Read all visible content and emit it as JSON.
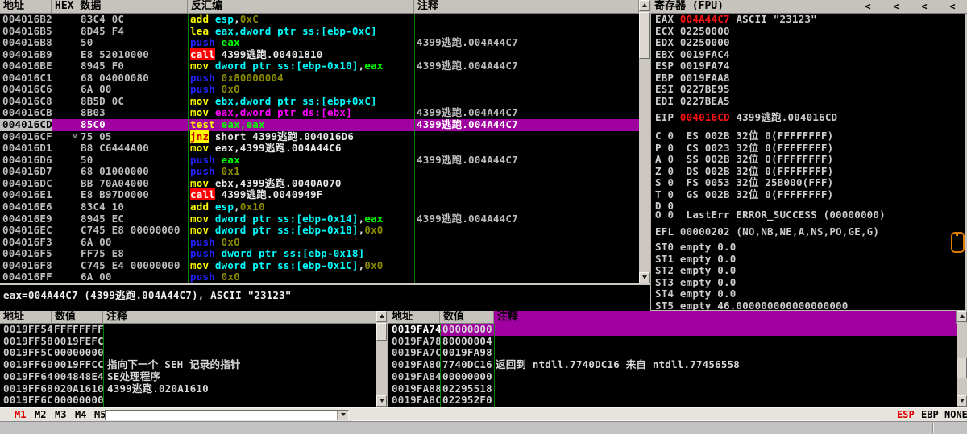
{
  "disasm": {
    "headers": [
      "地址",
      "HEX 数据",
      "反汇编",
      "注释"
    ],
    "rows": [
      {
        "addr": "004016B2",
        "hex": "83C4 0C",
        "segs": [
          [
            "y",
            "add "
          ],
          [
            "c",
            "esp"
          ],
          [
            "w",
            ","
          ],
          [
            "o",
            "0xC"
          ]
        ],
        "comment": ""
      },
      {
        "addr": "004016B5",
        "hex": "8D45 F4",
        "segs": [
          [
            "y",
            "lea "
          ],
          [
            "c",
            "eax,dword ptr ss:[ebp-0xC]"
          ]
        ],
        "comment": ""
      },
      {
        "addr": "004016B8",
        "hex": "50",
        "segs": [
          [
            "b",
            "push "
          ],
          [
            "g",
            "eax"
          ]
        ],
        "comment": "4399逃跑.004A44C7"
      },
      {
        "addr": "004016B9",
        "hex": "E8 52010000",
        "segs": [
          [
            "C",
            "call"
          ],
          [
            "w",
            " 4399逃跑.00401810"
          ]
        ],
        "comment": ""
      },
      {
        "addr": "004016BE",
        "hex": "8945 F0",
        "segs": [
          [
            "y",
            "mov "
          ],
          [
            "c",
            "dword ptr ss:[ebp-0x10]"
          ],
          [
            "w",
            ","
          ],
          [
            "g",
            "eax"
          ]
        ],
        "comment": "4399逃跑.004A44C7"
      },
      {
        "addr": "004016C1",
        "hex": "68 04000080",
        "segs": [
          [
            "b",
            "push "
          ],
          [
            "o",
            "0x80000004"
          ]
        ],
        "comment": ""
      },
      {
        "addr": "004016C6",
        "hex": "6A 00",
        "segs": [
          [
            "b",
            "push "
          ],
          [
            "o",
            "0x0"
          ]
        ],
        "comment": ""
      },
      {
        "addr": "004016C8",
        "hex": "8B5D 0C",
        "segs": [
          [
            "y",
            "mov "
          ],
          [
            "c",
            "ebx,dword ptr ss:[ebp+0xC]"
          ]
        ],
        "comment": ""
      },
      {
        "addr": "004016CB",
        "hex": "8B03",
        "segs": [
          [
            "y",
            "mov "
          ],
          [
            "m",
            "eax,dword ptr ds:[ebx]"
          ]
        ],
        "comment": "4399逃跑.004A44C7"
      },
      {
        "addr": "004016CD",
        "hex": "85C0",
        "segs": [
          [
            "y",
            "test "
          ],
          [
            "g",
            "eax,eax"
          ]
        ],
        "comment": "4399逃跑.004A44C7",
        "selected": true
      },
      {
        "addr": "004016CF",
        "hex": "75 05",
        "segs": [
          [
            "J",
            "jnz"
          ],
          [
            "w",
            " short 4399逃跑.004016D6"
          ]
        ],
        "comment": "",
        "arrow": "v"
      },
      {
        "addr": "004016D1",
        "hex": "B8 C6444A00",
        "segs": [
          [
            "y",
            "mov "
          ],
          [
            "w",
            "eax,4399逃跑.004A44C6"
          ]
        ],
        "comment": ""
      },
      {
        "addr": "004016D6",
        "hex": "50",
        "segs": [
          [
            "b",
            "push "
          ],
          [
            "g",
            "eax"
          ]
        ],
        "comment": "4399逃跑.004A44C7"
      },
      {
        "addr": "004016D7",
        "hex": "68 01000000",
        "segs": [
          [
            "b",
            "push "
          ],
          [
            "o",
            "0x1"
          ]
        ],
        "comment": ""
      },
      {
        "addr": "004016DC",
        "hex": "BB 70A04000",
        "segs": [
          [
            "y",
            "mov "
          ],
          [
            "w",
            "ebx,4399逃跑.0040A070"
          ]
        ],
        "comment": ""
      },
      {
        "addr": "004016E1",
        "hex": "E8 B97D0000",
        "segs": [
          [
            "C",
            "call"
          ],
          [
            "w",
            " 4399逃跑.0040949F"
          ]
        ],
        "comment": ""
      },
      {
        "addr": "004016E6",
        "hex": "83C4 10",
        "segs": [
          [
            "y",
            "add "
          ],
          [
            "c",
            "esp"
          ],
          [
            "w",
            ","
          ],
          [
            "o",
            "0x10"
          ]
        ],
        "comment": ""
      },
      {
        "addr": "004016E9",
        "hex": "8945 EC",
        "segs": [
          [
            "y",
            "mov "
          ],
          [
            "c",
            "dword ptr ss:[ebp-0x14]"
          ],
          [
            "w",
            ","
          ],
          [
            "g",
            "eax"
          ]
        ],
        "comment": "4399逃跑.004A44C7"
      },
      {
        "addr": "004016EC",
        "hex": "C745 E8 00000000",
        "segs": [
          [
            "y",
            "mov "
          ],
          [
            "c",
            "dword ptr ss:[ebp-0x18]"
          ],
          [
            "w",
            ","
          ],
          [
            "o",
            "0x0"
          ]
        ],
        "comment": ""
      },
      {
        "addr": "004016F3",
        "hex": "6A 00",
        "segs": [
          [
            "b",
            "push "
          ],
          [
            "o",
            "0x0"
          ]
        ],
        "comment": ""
      },
      {
        "addr": "004016F5",
        "hex": "FF75 E8",
        "segs": [
          [
            "b",
            "push "
          ],
          [
            "c",
            "dword ptr ss:[ebp-0x18]"
          ]
        ],
        "comment": ""
      },
      {
        "addr": "004016F8",
        "hex": "C745 E4 00000000",
        "segs": [
          [
            "y",
            "mov "
          ],
          [
            "c",
            "dword ptr ss:[ebp-0x1C]"
          ],
          [
            "w",
            ","
          ],
          [
            "o",
            "0x0"
          ]
        ],
        "comment": ""
      },
      {
        "addr": "004016FF",
        "hex": "6A 00",
        "segs": [
          [
            "b",
            "push "
          ],
          [
            "o",
            "0x0"
          ]
        ],
        "comment": ""
      }
    ]
  },
  "registers": {
    "title": "寄存器 (FPU)",
    "collapse_buttons": [
      "<",
      "<",
      "<",
      "<"
    ],
    "lines": [
      {
        "segs": [
          [
            "n",
            "EAX "
          ],
          [
            "r",
            "004A44C7"
          ],
          [
            "n",
            " ASCII \"23123\""
          ]
        ]
      },
      {
        "segs": [
          [
            "n",
            "ECX 02250000"
          ]
        ]
      },
      {
        "segs": [
          [
            "n",
            "EDX 02250000"
          ]
        ]
      },
      {
        "segs": [
          [
            "n",
            "EBX 0019FAC4"
          ]
        ]
      },
      {
        "segs": [
          [
            "n",
            "ESP 0019FA74"
          ]
        ]
      },
      {
        "segs": [
          [
            "n",
            "EBP 0019FAA8"
          ]
        ]
      },
      {
        "segs": [
          [
            "n",
            "ESI 0227BE95"
          ]
        ]
      },
      {
        "segs": [
          [
            "n",
            "EDI 0227BEA5"
          ]
        ]
      },
      {
        "segs": [
          [
            "n",
            "EIP "
          ],
          [
            "r",
            "004016CD"
          ],
          [
            "n",
            " 4399逃跑.004016CD"
          ]
        ]
      },
      {
        "segs": [
          [
            "n",
            "C 0  ES 002B 32位 0(FFFFFFFF)"
          ]
        ]
      },
      {
        "segs": [
          [
            "n",
            "P 0  CS 0023 32位 0(FFFFFFFF)"
          ]
        ]
      },
      {
        "segs": [
          [
            "n",
            "A 0  SS 002B 32位 0(FFFFFFFF)"
          ]
        ]
      },
      {
        "segs": [
          [
            "n",
            "Z 0  DS 002B 32位 0(FFFFFFFF)"
          ]
        ]
      },
      {
        "segs": [
          [
            "n",
            "S 0  FS 0053 32位 25B000(FFF)"
          ]
        ]
      },
      {
        "segs": [
          [
            "n",
            "T 0  GS 002B 32位 0(FFFFFFFF)"
          ]
        ]
      },
      {
        "segs": [
          [
            "n",
            "D 0"
          ]
        ]
      },
      {
        "segs": [
          [
            "n",
            "O 0  LastErr ERROR_SUCCESS (00000000)"
          ]
        ]
      },
      {
        "segs": [
          [
            "n",
            "EFL 00000202 (NO,NB,NE,A,NS,PO,GE,G)"
          ]
        ]
      },
      {
        "segs": [
          [
            "n",
            "ST0 empty 0.0"
          ]
        ]
      },
      {
        "segs": [
          [
            "n",
            "ST1 empty 0.0"
          ]
        ]
      },
      {
        "segs": [
          [
            "n",
            "ST2 empty 0.0"
          ]
        ]
      },
      {
        "segs": [
          [
            "n",
            "ST3 empty 0.0"
          ]
        ]
      },
      {
        "segs": [
          [
            "n",
            "ST4 empty 0.0"
          ]
        ]
      },
      {
        "segs": [
          [
            "n",
            "ST5 empty 46.000000000000000000"
          ]
        ]
      }
    ]
  },
  "info": {
    "line": "eax=004A44C7 (4399逃跑.004A44C7), ASCII \"23123\""
  },
  "stack_left": {
    "headers": [
      "地址",
      "数值",
      "注释"
    ],
    "rows": [
      {
        "addr": "0019FF54",
        "val": "FFFFFFFF",
        "comment": ""
      },
      {
        "addr": "0019FF58",
        "val": "0019FEFC",
        "comment": ""
      },
      {
        "addr": "0019FF5C",
        "val": "00000000",
        "comment": ""
      },
      {
        "addr": "0019FF60",
        "val": "0019FFCC",
        "comment": "指向下一个 SEH 记录的指针"
      },
      {
        "addr": "0019FF64",
        "val": "004848E4",
        "comment": "SE处理程序"
      },
      {
        "addr": "0019FF68",
        "val": "020A1610",
        "comment": "4399逃跑.020A1610"
      },
      {
        "addr": "0019FF6C",
        "val": "00000000",
        "comment": ""
      }
    ]
  },
  "stack_right": {
    "headers": [
      "地址",
      "数值",
      "注释"
    ],
    "rows": [
      {
        "addr": "0019FA74",
        "val": "00000000",
        "comment": "",
        "selected": true
      },
      {
        "addr": "0019FA78",
        "val": "80000004",
        "comment": ""
      },
      {
        "addr": "0019FA7C",
        "val": "0019FA98",
        "comment": ""
      },
      {
        "addr": "0019FA80",
        "val": "7740DC16",
        "comment": "返回到 ntdll.7740DC16 来自 ntdll.77456558"
      },
      {
        "addr": "0019FA84",
        "val": "00000000",
        "comment": ""
      },
      {
        "addr": "0019FA88",
        "val": "02295518",
        "comment": ""
      },
      {
        "addr": "0019FA8C",
        "val": "022952F0",
        "comment": ""
      }
    ]
  },
  "toolbar": {
    "tabs": [
      {
        "label": "M1",
        "active": true
      },
      {
        "label": "M2",
        "active": false
      },
      {
        "label": "M3",
        "active": false
      },
      {
        "label": "M4",
        "active": false
      },
      {
        "label": "M5",
        "active": false
      }
    ],
    "combo_value": "",
    "right_labels": [
      {
        "label": "ESP",
        "active": true
      },
      {
        "label": "EBP",
        "active": false
      },
      {
        "label": "NONE",
        "active": false
      }
    ]
  },
  "colors": {
    "highlight": "#a000a0",
    "grid_green": "#00a000",
    "changed_red": "#ff1414",
    "call_bg": "#ff0000",
    "jump_bg": "#ffff00"
  }
}
